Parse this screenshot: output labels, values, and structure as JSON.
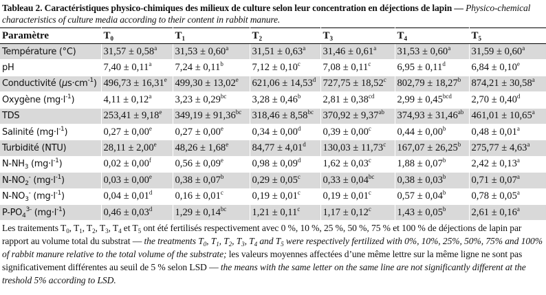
{
  "caption": [
    {
      "b": "Tableau 2."
    },
    {
      "b": " Caractéristiques physico-chimiques des milieux de culture selon leur concentration en déjections de lapin — "
    },
    {
      "i": "Physico-chemical characteristics of culture media according to their content in rabbit manure."
    }
  ],
  "table": {
    "header": [
      [
        {
          "t": "Paramètre"
        }
      ],
      [
        {
          "t": "T"
        },
        {
          "sub": "0"
        }
      ],
      [
        {
          "t": "T"
        },
        {
          "sub": "1"
        }
      ],
      [
        {
          "t": "T"
        },
        {
          "sub": "2"
        }
      ],
      [
        {
          "t": "T"
        },
        {
          "sub": "3"
        }
      ],
      [
        {
          "t": "T"
        },
        {
          "sub": "4"
        }
      ],
      [
        {
          "t": "T"
        },
        {
          "sub": "5"
        }
      ]
    ],
    "rows": [
      [
        [
          {
            "t": "Température (°C)"
          }
        ],
        [
          {
            "t": "31,57 ± 0,58"
          },
          {
            "sup": "a"
          }
        ],
        [
          {
            "t": "31,53 ± 0,60"
          },
          {
            "sup": "a"
          }
        ],
        [
          {
            "t": "31,51 ± 0,63"
          },
          {
            "sup": "a"
          }
        ],
        [
          {
            "t": "31,46 ± 0,61"
          },
          {
            "sup": "a"
          }
        ],
        [
          {
            "t": "31,53 ± 0,60"
          },
          {
            "sup": "a"
          }
        ],
        [
          {
            "t": "31,59 ± 0,60"
          },
          {
            "sup": "a"
          }
        ]
      ],
      [
        [
          {
            "t": "pH"
          }
        ],
        [
          {
            "t": "7,40 ± 0,11"
          },
          {
            "sup": "a"
          }
        ],
        [
          {
            "t": "7,24 ± 0,11"
          },
          {
            "sup": "b"
          }
        ],
        [
          {
            "t": "7,12 ± 0,10"
          },
          {
            "sup": "c"
          }
        ],
        [
          {
            "t": "7,08 ± 0,11"
          },
          {
            "sup": "c"
          }
        ],
        [
          {
            "t": "6,95 ± 0,11"
          },
          {
            "sup": "d"
          }
        ],
        [
          {
            "t": "6,84 ± 0,10"
          },
          {
            "sup": "e"
          }
        ]
      ],
      [
        [
          {
            "t": "Conductivité ("
          },
          {
            "i": "µ"
          },
          {
            "t": "s·cm"
          },
          {
            "sup": "-1"
          },
          {
            "t": ")"
          }
        ],
        [
          {
            "t": "496,73 ± 16,31"
          },
          {
            "sup": "e"
          }
        ],
        [
          {
            "t": "499,30 ± 13,02"
          },
          {
            "sup": "e"
          }
        ],
        [
          {
            "t": "621,06 ± 14,53"
          },
          {
            "sup": "d"
          }
        ],
        [
          {
            "t": "727,75 ± 18,52"
          },
          {
            "sup": "c"
          }
        ],
        [
          {
            "t": "802,79 ± 18,27"
          },
          {
            "sup": "b"
          }
        ],
        [
          {
            "t": "874,21 ± 30,58"
          },
          {
            "sup": "a"
          }
        ]
      ],
      [
        [
          {
            "t": "Oxygène (mg·l"
          },
          {
            "sup": "-1"
          },
          {
            "t": ")"
          }
        ],
        [
          {
            "t": "4,11 ± 0,12"
          },
          {
            "sup": "a"
          }
        ],
        [
          {
            "t": "3,23 ± 0,29"
          },
          {
            "sup": "bc"
          }
        ],
        [
          {
            "t": "3,28 ± 0,46"
          },
          {
            "sup": "b"
          }
        ],
        [
          {
            "t": "2,81 ± 0,38"
          },
          {
            "sup": "cd"
          }
        ],
        [
          {
            "t": "2,99 ± 0,45"
          },
          {
            "sup": "bcd"
          }
        ],
        [
          {
            "t": "2,70 ± 0,40"
          },
          {
            "sup": "d"
          }
        ]
      ],
      [
        [
          {
            "t": "TDS"
          }
        ],
        [
          {
            "t": "253,41 ± 9,18"
          },
          {
            "sup": "e"
          }
        ],
        [
          {
            "t": "349,19 ± 91,36"
          },
          {
            "sup": "bc"
          }
        ],
        [
          {
            "t": "318,46 ± 8,58"
          },
          {
            "sup": "bc"
          }
        ],
        [
          {
            "t": "370,92 ± 9,37"
          },
          {
            "sup": "ab"
          }
        ],
        [
          {
            "t": "374,93 ± 31,46"
          },
          {
            "sup": "ab"
          }
        ],
        [
          {
            "t": "461,01 ± 10,65"
          },
          {
            "sup": "a"
          }
        ]
      ],
      [
        [
          {
            "t": "Salinité (mg·l"
          },
          {
            "sup": "-1"
          },
          {
            "t": ")"
          }
        ],
        [
          {
            "t": "0,27 ± 0,00"
          },
          {
            "sup": "e"
          }
        ],
        [
          {
            "t": "0,27 ± 0,00"
          },
          {
            "sup": "e"
          }
        ],
        [
          {
            "t": "0,34 ± 0,00"
          },
          {
            "sup": "d"
          }
        ],
        [
          {
            "t": "0,39 ± 0,00"
          },
          {
            "sup": "c"
          }
        ],
        [
          {
            "t": "0,44 ± 0,00"
          },
          {
            "sup": "b"
          }
        ],
        [
          {
            "t": "0,48 ± 0,01"
          },
          {
            "sup": "a"
          }
        ]
      ],
      [
        [
          {
            "t": "Turbidité (NTU)"
          }
        ],
        [
          {
            "t": "28,11 ± 2,00"
          },
          {
            "sup": "e"
          }
        ],
        [
          {
            "t": "48,26 ± 1,68"
          },
          {
            "sup": "e"
          }
        ],
        [
          {
            "t": "84,77 ± 4,01"
          },
          {
            "sup": "d"
          }
        ],
        [
          {
            "t": "130,03 ± 11,73"
          },
          {
            "sup": "c"
          }
        ],
        [
          {
            "t": "167,07 ± 26,25"
          },
          {
            "sup": "b"
          }
        ],
        [
          {
            "t": "275,77 ± 4,63"
          },
          {
            "sup": "a"
          }
        ]
      ],
      [
        [
          {
            "t": "N-NH"
          },
          {
            "sub": "3"
          },
          {
            "t": " (mg·l"
          },
          {
            "sup": "-1"
          },
          {
            "t": ")"
          }
        ],
        [
          {
            "t": "0,02 ± 0,00"
          },
          {
            "sup": "f"
          }
        ],
        [
          {
            "t": "0,56 ± 0,09"
          },
          {
            "sup": "e"
          }
        ],
        [
          {
            "t": "0,98 ± 0,09"
          },
          {
            "sup": "d"
          }
        ],
        [
          {
            "t": "1,62 ± 0,03"
          },
          {
            "sup": "c"
          }
        ],
        [
          {
            "t": "1,88 ± 0,07"
          },
          {
            "sup": "b"
          }
        ],
        [
          {
            "t": "2,42 ± 0,13"
          },
          {
            "sup": "a"
          }
        ]
      ],
      [
        [
          {
            "t": "N-NO"
          },
          {
            "sub": "2"
          },
          {
            "sup": "-"
          },
          {
            "t": " (mg·l"
          },
          {
            "sup": "-1"
          },
          {
            "t": ")"
          }
        ],
        [
          {
            "t": "0,03 ± 0,00"
          },
          {
            "sup": "e"
          }
        ],
        [
          {
            "t": "0,38 ± 0,07"
          },
          {
            "sup": "b"
          }
        ],
        [
          {
            "t": "0,29 ± 0,05"
          },
          {
            "sup": "c"
          }
        ],
        [
          {
            "t": "0,33 ± 0,04"
          },
          {
            "sup": "bc"
          }
        ],
        [
          {
            "t": "0,38 ± 0,03"
          },
          {
            "sup": "b"
          }
        ],
        [
          {
            "t": "0,71 ± 0,07"
          },
          {
            "sup": "a"
          }
        ]
      ],
      [
        [
          {
            "t": "N-NO"
          },
          {
            "sub": "3"
          },
          {
            "sup": "-"
          },
          {
            "t": " (mg·l"
          },
          {
            "sup": "-1"
          },
          {
            "t": ")"
          }
        ],
        [
          {
            "t": "0,04 ± 0,01"
          },
          {
            "sup": "d"
          }
        ],
        [
          {
            "t": "0,16 ± 0,01"
          },
          {
            "sup": "c"
          }
        ],
        [
          {
            "t": "0,19 ± 0,01"
          },
          {
            "sup": "c"
          }
        ],
        [
          {
            "t": "0,19 ± 0,01"
          },
          {
            "sup": "c"
          }
        ],
        [
          {
            "t": "0,57 ± 0,04"
          },
          {
            "sup": "b"
          }
        ],
        [
          {
            "t": "0,78 ± 0,05"
          },
          {
            "sup": "a"
          }
        ]
      ],
      [
        [
          {
            "t": "P-PO"
          },
          {
            "sub": "4"
          },
          {
            "sup": "3-"
          },
          {
            "t": " (mg·l"
          },
          {
            "sup": "-1"
          },
          {
            "t": ")"
          }
        ],
        [
          {
            "t": "0,46 ± 0,03"
          },
          {
            "sup": "d"
          }
        ],
        [
          {
            "t": "1,29 ± 0,14"
          },
          {
            "sup": "bc"
          }
        ],
        [
          {
            "t": "1,21 ± 0,11"
          },
          {
            "sup": "c"
          }
        ],
        [
          {
            "t": "1,17 ± 0,12"
          },
          {
            "sup": "c"
          }
        ],
        [
          {
            "t": "1,43 ± 0,05"
          },
          {
            "sup": "b"
          }
        ],
        [
          {
            "t": "2,61 ± 0,16"
          },
          {
            "sup": "a"
          }
        ]
      ]
    ]
  },
  "footnote": [
    {
      "t": "Les traitements T"
    },
    {
      "sub": "0"
    },
    {
      "t": ", T"
    },
    {
      "sub": "1"
    },
    {
      "t": ", T"
    },
    {
      "sub": "2"
    },
    {
      "t": ", T"
    },
    {
      "sub": "3"
    },
    {
      "t": ", T"
    },
    {
      "sub": "4"
    },
    {
      "t": " et T"
    },
    {
      "sub": "5"
    },
    {
      "t": " ont été fertilisés respectivement avec 0 %, 10 %, 25 %, 50 %, 75 % et 100 % de déjections de lapin par rapport au volume total du substrat — "
    },
    {
      "i": "the treatments T"
    },
    {
      "isub": "0"
    },
    {
      "i": ", T"
    },
    {
      "isub": "1"
    },
    {
      "i": ", T"
    },
    {
      "isub": "2"
    },
    {
      "i": ", T"
    },
    {
      "isub": "3"
    },
    {
      "i": ", T"
    },
    {
      "isub": "4"
    },
    {
      "i": " and T"
    },
    {
      "isub": "5"
    },
    {
      "i": " were respectively fertilized with 0%, 10%, 25%, 50%, 75% and 100% of rabbit manure relative to the total volume of the substrate;"
    },
    {
      "t": " les valeurs moyennes affectées d’une même lettre sur la même ligne ne sont pas significativement différentes au seuil de 5 % selon LSD — "
    },
    {
      "i": "the means with the same letter on the same line are not significantly different at the treshold 5% according to LSD."
    }
  ]
}
